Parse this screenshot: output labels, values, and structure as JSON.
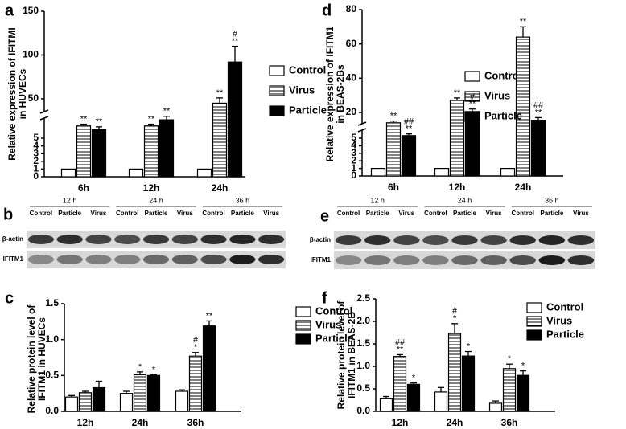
{
  "chart_data": [
    {
      "type": "bar",
      "panel": "a",
      "ylabel": [
        "Relative expression of IFITMI",
        "in HUVECs"
      ],
      "categories": [
        "6h",
        "12h",
        "24h"
      ],
      "ylim": [
        0,
        5
      ],
      "yticks": [
        0,
        1,
        2,
        3,
        4,
        5
      ],
      "ylim_upper": [
        5,
        150
      ],
      "yticks_upper": [
        50,
        100,
        150
      ],
      "legend": "right",
      "series": [
        {
          "name": "Control",
          "color": "#ffffff",
          "values": [
            1,
            1,
            1
          ]
        },
        {
          "name": "Virus",
          "color": "#ffffff",
          "hatch": "horizontal",
          "values": [
            19,
            19,
            45
          ],
          "errors": [
            2,
            2,
            6
          ],
          "annotations": [
            [
              "**"
            ],
            [
              "**"
            ],
            [
              "**"
            ]
          ]
        },
        {
          "name": "Particle",
          "color": "#000000",
          "values": [
            15,
            26,
            92
          ],
          "errors": [
            3,
            4,
            18
          ],
          "annotations": [
            [
              "**"
            ],
            [
              "**"
            ],
            [
              "#",
              "**"
            ]
          ]
        }
      ]
    },
    {
      "type": "bar",
      "panel": "d",
      "ylabel": [
        "Relative expression of IFITM1",
        "in BEAS-2Bs"
      ],
      "categories": [
        "6h",
        "12h",
        "24h"
      ],
      "ylim": [
        0,
        5
      ],
      "yticks": [
        0,
        1,
        2,
        3,
        4,
        5
      ],
      "ylim_upper": [
        5,
        80
      ],
      "yticks_upper": [
        20,
        40,
        60,
        80
      ],
      "legend": "right",
      "series": [
        {
          "name": "Control",
          "color": "#ffffff",
          "values": [
            1,
            1,
            1
          ]
        },
        {
          "name": "Virus",
          "color": "#ffffff",
          "hatch": "horizontal",
          "values": [
            14,
            27,
            64
          ],
          "errors": [
            1,
            1.5,
            6
          ],
          "annotations": [
            [
              "**"
            ],
            [
              "**"
            ],
            [
              "**"
            ]
          ]
        },
        {
          "name": "Particle",
          "color": "#000000",
          "values": [
            6.5,
            20.5,
            15.5
          ],
          "errors": [
            1,
            1.5,
            1.5
          ],
          "annotations": [
            [
              "##",
              "**"
            ],
            [
              "#",
              "**"
            ],
            [
              "##",
              "**"
            ]
          ]
        }
      ]
    },
    {
      "type": "bar",
      "panel": "c",
      "ylabel": [
        "Relative protein level of",
        "IFITM1 in HUVECs"
      ],
      "categories": [
        "12h",
        "24h",
        "36h"
      ],
      "ylim": [
        0,
        1.5
      ],
      "yticks": [
        {
          "value": 0,
          "label": "0.0"
        },
        0.5,
        {
          "value": 1,
          "label": "1.0"
        },
        1.5
      ],
      "legend": "right",
      "series": [
        {
          "name": "Control",
          "color": "#ffffff",
          "values": [
            0.2,
            0.25,
            0.28
          ],
          "errors": [
            0.02,
            0.03,
            0.02
          ]
        },
        {
          "name": "Virus",
          "color": "#ffffff",
          "hatch": "horizontal",
          "values": [
            0.26,
            0.51,
            0.77
          ],
          "errors": [
            0.02,
            0.04,
            0.05
          ],
          "annotations": [
            null,
            [
              "*"
            ],
            [
              "#",
              "*"
            ]
          ]
        },
        {
          "name": "Particle",
          "color": "#000000",
          "values": [
            0.33,
            0.5,
            1.19
          ],
          "errors": [
            0.09,
            0.01,
            0.07
          ],
          "annotations": [
            null,
            [
              "*"
            ],
            [
              "**"
            ]
          ]
        }
      ]
    },
    {
      "type": "bar",
      "panel": "f",
      "ylabel": [
        "Relative protein level of",
        "IFITM1 in BEAS-2B"
      ],
      "categories": [
        "12h",
        "24h",
        "36h"
      ],
      "ylim": [
        0,
        2.5
      ],
      "yticks": [
        {
          "value": 0,
          "label": "0.0"
        },
        0.5,
        {
          "value": 1,
          "label": "1.0"
        },
        1.5,
        {
          "value": 2,
          "label": "2.0"
        },
        2.5
      ],
      "legend": "right",
      "series": [
        {
          "name": "Control",
          "color": "#ffffff",
          "values": [
            0.28,
            0.43,
            0.18
          ],
          "errors": [
            0.05,
            0.1,
            0.05
          ]
        },
        {
          "name": "Virus",
          "color": "#ffffff",
          "hatch": "horizontal",
          "values": [
            1.22,
            1.73,
            0.95
          ],
          "errors": [
            0.04,
            0.22,
            0.1
          ],
          "annotations": [
            [
              "##",
              "**"
            ],
            [
              "#",
              "*"
            ],
            [
              "*"
            ]
          ]
        },
        {
          "name": "Particle",
          "color": "#000000",
          "values": [
            0.6,
            1.23,
            0.8
          ],
          "errors": [
            0.03,
            0.1,
            0.1
          ],
          "annotations": [
            [
              "*"
            ],
            [
              "*"
            ],
            [
              "*"
            ]
          ]
        }
      ]
    }
  ],
  "blots": [
    {
      "panel": "b",
      "rows": [
        "β-actin",
        "IFITM1"
      ],
      "groups": [
        {
          "label": "12 h",
          "lanes": [
            "Control",
            "Particle",
            "Virus"
          ]
        },
        {
          "label": "24 h",
          "lanes": [
            "Control",
            "Particle",
            "Virus"
          ]
        },
        {
          "label": "36 h",
          "lanes": [
            "Control",
            "Particle",
            "Virus"
          ]
        }
      ]
    },
    {
      "panel": "e",
      "rows": [
        "β-actin",
        "IFITM1"
      ],
      "groups": [
        {
          "label": "12 h",
          "lanes": [
            "Control",
            "Particle",
            "Virus"
          ]
        },
        {
          "label": "24 h",
          "lanes": [
            "Control",
            "Particle",
            "Virus"
          ]
        },
        {
          "label": "36 h",
          "lanes": [
            "Control",
            "Particle",
            "Virus"
          ]
        }
      ]
    }
  ]
}
